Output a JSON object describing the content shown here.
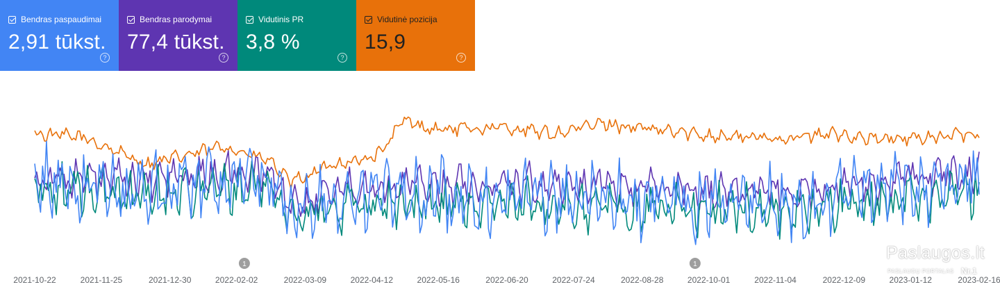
{
  "metrics": [
    {
      "id": "clicks",
      "label": "Bendras paspaudimai",
      "value": "2,91 tūkst.",
      "color": "#4285f4",
      "checked": true
    },
    {
      "id": "impressions",
      "label": "Bendras parodymai",
      "value": "77,4 tūkst.",
      "color": "#5e35b1",
      "checked": true
    },
    {
      "id": "ctr",
      "label": "Vidutinis PR",
      "value": "3,8 %",
      "color": "#00897b",
      "checked": true
    },
    {
      "id": "position",
      "label": "Vidutinė pozicija",
      "value": "15,9",
      "color": "#e8710a",
      "checked": true
    }
  ],
  "help_glyph": "?",
  "annotation_markers": [
    {
      "date": "2022-02-06",
      "label": "1"
    },
    {
      "date": "2022-09-24",
      "label": "1"
    }
  ],
  "watermark": {
    "title": "Paslaugos.lt",
    "subtitle": "PASLAUGŲ PORTALAS",
    "badge": "Nr.1"
  },
  "chart_data": {
    "type": "line",
    "x_range": [
      "2021-10-22",
      "2023-02-16"
    ],
    "x_tick_labels": [
      "2021-10-22",
      "2021-11-25",
      "2021-12-30",
      "2022-02-02",
      "2022-03-09",
      "2022-04-12",
      "2022-05-16",
      "2022-06-20",
      "2022-07-24",
      "2022-08-28",
      "2022-10-01",
      "2022-11-04",
      "2022-12-09",
      "2023-01-12",
      "2023-02-16"
    ],
    "grid": false,
    "legend": "top (metric cards)",
    "y_axis_visible": false,
    "series": [
      {
        "name": "Vidutinė pozicija",
        "color": "#e8710a",
        "levels": [
          [
            0,
            0.76
          ],
          [
            0.05,
            0.74
          ],
          [
            0.12,
            0.56
          ],
          [
            0.2,
            0.68
          ],
          [
            0.25,
            0.58
          ],
          [
            0.27,
            0.44
          ],
          [
            0.32,
            0.57
          ],
          [
            0.35,
            0.59
          ],
          [
            0.37,
            0.66
          ],
          [
            0.39,
            0.85
          ],
          [
            0.42,
            0.79
          ],
          [
            0.5,
            0.8
          ],
          [
            0.55,
            0.76
          ],
          [
            0.6,
            0.83
          ],
          [
            0.65,
            0.79
          ],
          [
            0.72,
            0.75
          ],
          [
            0.78,
            0.73
          ],
          [
            0.85,
            0.76
          ],
          [
            0.9,
            0.72
          ],
          [
            0.95,
            0.74
          ],
          [
            1,
            0.76
          ]
        ],
        "amp": 0.05
      },
      {
        "name": "Bendras parodymai",
        "color": "#5e35b1",
        "levels": [
          [
            0,
            0.48
          ],
          [
            0.1,
            0.45
          ],
          [
            0.2,
            0.5
          ],
          [
            0.25,
            0.5
          ],
          [
            0.27,
            0.3
          ],
          [
            0.33,
            0.42
          ],
          [
            0.5,
            0.44
          ],
          [
            0.6,
            0.42
          ],
          [
            0.7,
            0.4
          ],
          [
            0.8,
            0.38
          ],
          [
            0.9,
            0.45
          ],
          [
            1,
            0.52
          ]
        ],
        "amp": 0.14
      },
      {
        "name": "Vidutinis PR",
        "color": "#00897b",
        "levels": [
          [
            0,
            0.4
          ],
          [
            0.1,
            0.37
          ],
          [
            0.2,
            0.4
          ],
          [
            0.25,
            0.42
          ],
          [
            0.27,
            0.22
          ],
          [
            0.33,
            0.3
          ],
          [
            0.5,
            0.3
          ],
          [
            0.6,
            0.28
          ],
          [
            0.7,
            0.27
          ],
          [
            0.8,
            0.26
          ],
          [
            0.9,
            0.32
          ],
          [
            1,
            0.4
          ]
        ],
        "amp": 0.18
      },
      {
        "name": "Bendras paspaudimai",
        "color": "#4285f4",
        "levels": [
          [
            0,
            0.45
          ],
          [
            0.1,
            0.4
          ],
          [
            0.2,
            0.45
          ],
          [
            0.25,
            0.48
          ],
          [
            0.27,
            0.25
          ],
          [
            0.33,
            0.35
          ],
          [
            0.5,
            0.36
          ],
          [
            0.6,
            0.33
          ],
          [
            0.7,
            0.32
          ],
          [
            0.8,
            0.3
          ],
          [
            0.9,
            0.38
          ],
          [
            1,
            0.46
          ]
        ],
        "amp": 0.26
      }
    ]
  }
}
